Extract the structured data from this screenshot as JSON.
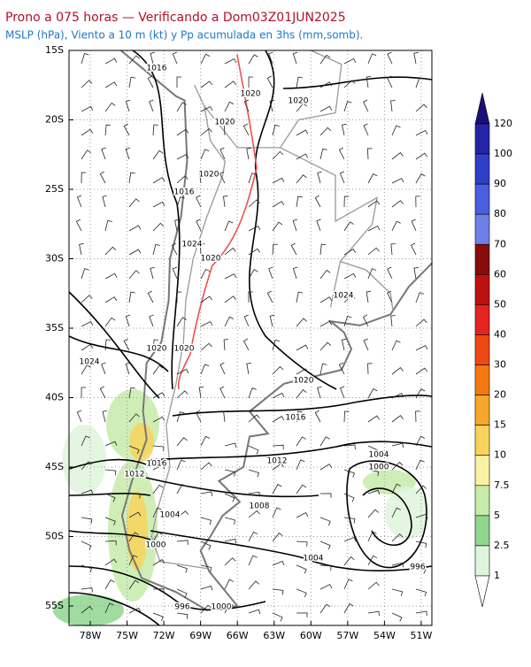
{
  "header": {
    "title": "Prono a 075 horas — Verificando a Dom03Z01JUN2025",
    "subtitle": "MSLP (hPa), Viento a 10 m (kt) y Pp acumulada en 3hs (mm,somb)."
  },
  "map": {
    "lat_labels": [
      "15S",
      "20S",
      "25S",
      "30S",
      "35S",
      "40S",
      "45S",
      "50S",
      "55S"
    ],
    "lon_labels": [
      "78W",
      "75W",
      "72W",
      "69W",
      "66W",
      "63W",
      "60W",
      "57W",
      "54W",
      "51W"
    ],
    "isobar_labels": [
      "1016",
      "1020",
      "1020",
      "1020",
      "1020",
      "1016",
      "1024",
      "1020",
      "1024",
      "1020",
      "1020",
      "1024",
      "1020",
      "1016",
      "1012",
      "1004",
      "1000",
      "1016",
      "1012",
      "1008",
      "1004",
      "1000",
      "1004",
      "996",
      "996",
      "1000"
    ]
  },
  "colorbar": {
    "labels": [
      120,
      100,
      90,
      80,
      70,
      60,
      50,
      40,
      30,
      20,
      15,
      10,
      7.5,
      5,
      2.5,
      1
    ],
    "colors": [
      "#1b0f78",
      "#2424a8",
      "#2f3fc8",
      "#4a5ee0",
      "#6f7fe8",
      "#8a0b0b",
      "#bd1111",
      "#e62222",
      "#f04812",
      "#f5780f",
      "#f6a62a",
      "#f8d35c",
      "#fbf1a4",
      "#c7ebaa",
      "#8fd68f",
      "#dff4dc",
      "#ffffff"
    ]
  }
}
